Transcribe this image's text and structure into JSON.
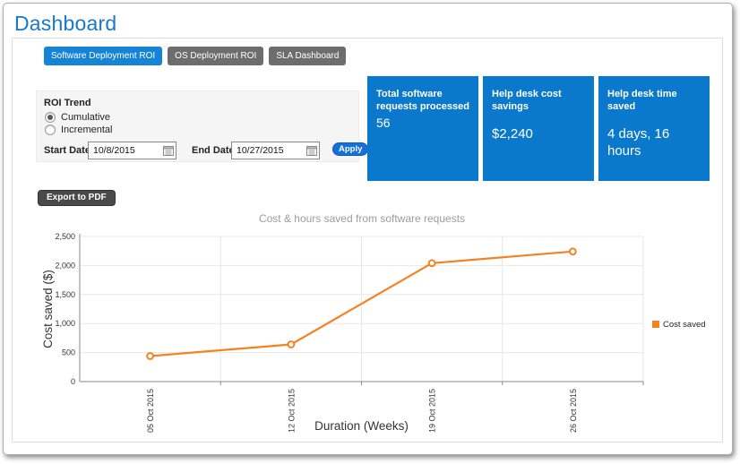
{
  "window": {
    "title": "Dashboard"
  },
  "tabs": [
    {
      "label": "Software Deployment ROI",
      "active": true
    },
    {
      "label": "OS Deployment ROI",
      "active": false
    },
    {
      "label": "SLA Dashboard",
      "active": false
    }
  ],
  "filter": {
    "group_label": "ROI Trend",
    "options": [
      {
        "label": "Cumulative",
        "selected": true
      },
      {
        "label": "Incremental",
        "selected": false
      }
    ],
    "start_date": {
      "label": "Start Date:",
      "value": "10/8/2015"
    },
    "end_date": {
      "label": "End Date:",
      "value": "10/27/2015"
    },
    "apply_label": "Apply"
  },
  "cards": [
    {
      "label": "Total software requests processed",
      "value": "56"
    },
    {
      "label": "Help desk cost savings",
      "value": "$2,240"
    },
    {
      "label": "Help desk time saved",
      "value": "4 days, 16 hours"
    }
  ],
  "export_button_label": "Export to PDF",
  "chart_data": {
    "type": "line",
    "title": "Cost & hours saved from software requests",
    "categories": [
      "05 Oct 2015",
      "12 Oct 2015",
      "19 Oct 2015",
      "26 Oct 2015"
    ],
    "series": [
      {
        "name": "Cost saved",
        "color": "#F58220",
        "values": [
          440,
          640,
          2040,
          2240
        ]
      }
    ],
    "xlabel": "Duration (Weeks)",
    "ylabel": "Cost saved ($)",
    "ylim": [
      0,
      2500
    ],
    "ytick_step": 500,
    "yticks": [
      "0",
      "500",
      "1,000",
      "1,500",
      "2,000",
      "2,500"
    ],
    "legend_position": "right",
    "grid": true
  },
  "colors": {
    "accent_blue": "#1583D6",
    "card_blue": "#0A79CC",
    "apply_blue": "#1670DC",
    "tab_gray": "#6D6D6D",
    "series_orange": "#F58220"
  }
}
